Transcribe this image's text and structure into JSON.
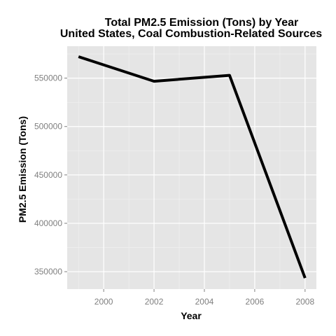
{
  "chart_data": {
    "type": "line",
    "title_line1": "Total PM2.5 Emission (Tons) by Year",
    "title_line2": "United States, Coal Combustion-Related Sources",
    "xlabel": "Year",
    "ylabel": "PM2.5 Emission (Tons)",
    "x": [
      1999,
      2002,
      2005,
      2008
    ],
    "y": [
      572126,
      546789,
      552881,
      343432
    ],
    "xlim": [
      1998.55,
      2008.45
    ],
    "ylim": [
      332000,
      583000
    ],
    "x_ticks": [
      2000,
      2002,
      2004,
      2006,
      2008
    ],
    "x_tick_labels": [
      "2000",
      "2002",
      "2004",
      "2006",
      "2008"
    ],
    "y_ticks": [
      350000,
      400000,
      450000,
      500000,
      550000
    ],
    "y_tick_labels": [
      "350000",
      "400000",
      "450000",
      "500000",
      "550000"
    ],
    "grid": true,
    "panel_color": "#e5e5e5",
    "grid_color": "#ffffff",
    "line_color": "#000000"
  }
}
